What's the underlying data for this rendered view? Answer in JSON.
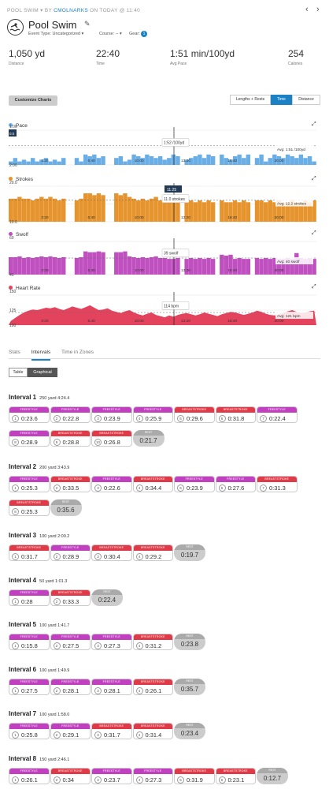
{
  "header": {
    "crumb_prefix": "POOL SWIM",
    "crumb_by": "BY",
    "crumb_user": "CMOLNARKS",
    "crumb_when": "ON TODAY @ 11:40",
    "title": "Pool Swim",
    "event_type": "Event Type: Uncategorized",
    "course": "Course: --",
    "gear": "Gear:",
    "gear_count": "1"
  },
  "stats": [
    {
      "value": "1,050 yd",
      "label": "Distance"
    },
    {
      "value": "22:40",
      "label": "Time"
    },
    {
      "value": "1:51 min/100yd",
      "label": "Avg Pace"
    },
    {
      "value": "254",
      "label": "Calories"
    }
  ],
  "toolbar": {
    "customize": "Customize Charts",
    "seg": [
      "Lengths + Rests",
      "Time",
      "Distance"
    ],
    "seg_active": 1
  },
  "colors": {
    "pace": "#6aaee6",
    "strokes": "#e6942d",
    "swolf": "#c050c0",
    "hr": "#e4435d",
    "accent": "#1a82c4",
    "freestyle": "#c040c0",
    "breaststroke": "#e03a48",
    "rest": "#bbbbbb"
  },
  "charts": [
    {
      "name": "Pace",
      "yticks": [
        "1:00",
        "2:00"
      ],
      "avg": "Avg: 1:51 /100yd",
      "tooltip": "1:52 /100yd",
      "side_badge": "0:0"
    },
    {
      "name": "Strokes",
      "yticks": [
        "20.0",
        "10.0"
      ],
      "avg": "Avg: 12.2 strokes",
      "tooltip": "11.0 strokes",
      "time_badge": "11:25"
    },
    {
      "name": "Swolf",
      "yticks": [
        "60",
        "40"
      ],
      "avg": "Avg: 40 swolf",
      "tooltip": "39 swolf"
    },
    {
      "name": "Heart Rate",
      "yticks": [
        "150",
        "125",
        "100"
      ],
      "avg": "Avg: 121 bpm",
      "tooltip": "114 bpm"
    }
  ],
  "xticks": [
    "3:20",
    "6:40",
    "10:00",
    "13:20",
    "16:40",
    "20:00"
  ],
  "chart_data": [
    {
      "type": "bar",
      "title": "Pace",
      "y": [
        1.9,
        1.8,
        1.9,
        1.85,
        1.9,
        1.8,
        1.9,
        1.85,
        1.8,
        1.9,
        1.85,
        1.9,
        1.8,
        1.9,
        1.85,
        1.8,
        1.9,
        1.7,
        1.75,
        1.7,
        1.8,
        1.75,
        1.8,
        1.7,
        1.8,
        1.75,
        1.9,
        1.85,
        1.7,
        1.75,
        1.8,
        1.7,
        1.75,
        1.8,
        1.75,
        1.85,
        1.8,
        1.7,
        1.75,
        1.8,
        1.85,
        1.8,
        1.75,
        1.7,
        1.8,
        1.7,
        1.75,
        1.8,
        1.7,
        1.8,
        1.85,
        1.75,
        1.7,
        1.8,
        1.7,
        1.75,
        1.8,
        1.7,
        1.9,
        1.8,
        1.7,
        1.75,
        1.8,
        1.7,
        1.75,
        1.8,
        1.7,
        1.8,
        1.75,
        1.9
      ]
    },
    {
      "type": "bar",
      "title": "Strokes",
      "y": [
        13,
        13,
        14,
        13,
        13,
        12,
        13,
        14,
        13,
        14,
        13,
        12,
        13,
        14,
        13,
        12,
        13,
        16,
        16,
        15,
        16,
        15,
        16,
        17,
        16,
        15,
        16,
        14,
        13,
        12,
        13,
        12,
        13,
        14,
        12,
        12,
        11,
        11,
        12,
        11,
        11,
        12,
        11,
        12,
        11,
        12,
        11,
        11,
        12,
        11,
        11,
        12,
        11,
        12,
        11,
        11,
        12,
        12,
        11,
        12,
        11,
        12,
        11,
        11,
        12,
        11,
        11,
        12,
        11,
        12
      ]
    },
    {
      "type": "bar",
      "title": "Swolf",
      "y": [
        41,
        41,
        42,
        40,
        41,
        40,
        41,
        42,
        41,
        42,
        41,
        40,
        41,
        42,
        41,
        40,
        41,
        48,
        47,
        47,
        48,
        47,
        48,
        48,
        47,
        47,
        48,
        42,
        41,
        40,
        41,
        40,
        41,
        42,
        40,
        40,
        39,
        39,
        40,
        39,
        39,
        40,
        39,
        40,
        39,
        40,
        39,
        39,
        44,
        43,
        44,
        39,
        40,
        39,
        39,
        40,
        40,
        39,
        40,
        39,
        40,
        39,
        39,
        40,
        39,
        46,
        40,
        39,
        40,
        39
      ]
    },
    {
      "type": "area",
      "title": "Heart Rate",
      "y": [
        107,
        112,
        117,
        121,
        124,
        126,
        125,
        127,
        129,
        128,
        130,
        127,
        125,
        128,
        131,
        129,
        127,
        130,
        133,
        129,
        125,
        126,
        128,
        124,
        122,
        120,
        123,
        125,
        121,
        118,
        116,
        119,
        121,
        117,
        115,
        113,
        116,
        114,
        117,
        119,
        120,
        118,
        116,
        118,
        121,
        119,
        117,
        115,
        118,
        120,
        122,
        121,
        119,
        117,
        119,
        121,
        124,
        122,
        119,
        117,
        116,
        118,
        120,
        123,
        125,
        122,
        120,
        121,
        123,
        124
      ]
    }
  ],
  "tabs": [
    "Stats",
    "Intervals",
    "Time in Zones"
  ],
  "tabs_active": 1,
  "view_toggle": [
    "Table",
    "Graphical"
  ],
  "view_active": 1,
  "intervals": [
    {
      "title": "Interval 1",
      "detail": "250 yard  4:24.4",
      "laps": [
        {
          "stroke": "FREESTYLE",
          "n": "1",
          "t": "0:23.6"
        },
        {
          "stroke": "FREESTYLE",
          "n": "2",
          "t": "0:22.8"
        },
        {
          "stroke": "FREESTYLE",
          "n": "3",
          "t": "0:23.9"
        },
        {
          "stroke": "FREESTYLE",
          "n": "4",
          "t": "0:25.9"
        },
        {
          "stroke": "BREASTSTROKE",
          "n": "5",
          "t": "0:29.6"
        },
        {
          "stroke": "BREASTSTROKE",
          "n": "6",
          "t": "0:31.8"
        },
        {
          "stroke": "FREESTYLE",
          "n": "7",
          "t": "0:22.4"
        },
        {
          "stroke": "FREESTYLE",
          "n": "8",
          "t": "0:28.9"
        },
        {
          "stroke": "BREASTSTROKE",
          "n": "9",
          "t": "0:28.8"
        },
        {
          "stroke": "BREASTSTROKE",
          "n": "10",
          "t": "0:26.8"
        },
        {
          "rest": true,
          "label": "REST",
          "t": "0:21.7"
        }
      ]
    },
    {
      "title": "Interval 2",
      "detail": "200 yard  3:43.9",
      "laps": [
        {
          "stroke": "FREESTYLE",
          "n": "1",
          "t": "0:25.3"
        },
        {
          "stroke": "BREASTSTROKE",
          "n": "2",
          "t": "0:33.5"
        },
        {
          "stroke": "FREESTYLE",
          "n": "3",
          "t": "0:22.6"
        },
        {
          "stroke": "BREASTSTROKE",
          "n": "4",
          "t": "0:34.4"
        },
        {
          "stroke": "FREESTYLE",
          "n": "5",
          "t": "0:23.9"
        },
        {
          "stroke": "FREESTYLE",
          "n": "6",
          "t": "0:27.6"
        },
        {
          "stroke": "BREASTSTROKE",
          "n": "7",
          "t": "0:31.3"
        },
        {
          "stroke": "BREASTSTROKE",
          "n": "8",
          "t": "0:25.3"
        },
        {
          "rest": true,
          "label": "REST",
          "t": "0:35.6"
        }
      ]
    },
    {
      "title": "Interval 3",
      "detail": "100 yard  2:00.2",
      "laps": [
        {
          "stroke": "BREASTSTROKE",
          "n": "1",
          "t": "0:31.7"
        },
        {
          "stroke": "FREESTYLE",
          "n": "2",
          "t": "0:28.9"
        },
        {
          "stroke": "BREASTSTROKE",
          "n": "3",
          "t": "0:30.4"
        },
        {
          "stroke": "BREASTSTROKE",
          "n": "4",
          "t": "0:29.2"
        },
        {
          "rest": true,
          "label": "REST",
          "t": "0:19.7"
        }
      ]
    },
    {
      "title": "Interval 4",
      "detail": "50 yard  1:01.3",
      "laps": [
        {
          "stroke": "FREESTYLE",
          "n": "1",
          "t": "0:28"
        },
        {
          "stroke": "BREASTSTROKE",
          "n": "2",
          "t": "0:33.3"
        },
        {
          "rest": true,
          "label": "REST",
          "t": "0:22.4"
        }
      ]
    },
    {
      "title": "Interval 5",
      "detail": "100 yard  1:41.7",
      "laps": [
        {
          "stroke": "FREESTYLE",
          "n": "1",
          "t": "0:15.8"
        },
        {
          "stroke": "FREESTYLE",
          "n": "2",
          "t": "0:27.5"
        },
        {
          "stroke": "FREESTYLE",
          "n": "3",
          "t": "0:27.3"
        },
        {
          "stroke": "BREASTSTROKE",
          "n": "4",
          "t": "0:31.2"
        },
        {
          "rest": true,
          "label": "REST",
          "t": "0:23.8"
        }
      ]
    },
    {
      "title": "Interval 6",
      "detail": "100 yard  1:49.9",
      "laps": [
        {
          "stroke": "FREESTYLE",
          "n": "1",
          "t": "0:27.5"
        },
        {
          "stroke": "FREESTYLE",
          "n": "2",
          "t": "0:28.1"
        },
        {
          "stroke": "FREESTYLE",
          "n": "3",
          "t": "0:28.1"
        },
        {
          "stroke": "BREASTSTROKE",
          "n": "4",
          "t": "0:26.1"
        },
        {
          "rest": true,
          "label": "REST",
          "t": "0:35.7"
        }
      ]
    },
    {
      "title": "Interval 7",
      "detail": "100 yard  1:58.0",
      "laps": [
        {
          "stroke": "FREESTYLE",
          "n": "1",
          "t": "0:25.8"
        },
        {
          "stroke": "FREESTYLE",
          "n": "2",
          "t": "0:29.1"
        },
        {
          "stroke": "BREASTSTROKE",
          "n": "3",
          "t": "0:31.7"
        },
        {
          "stroke": "BREASTSTROKE",
          "n": "4",
          "t": "0:31.4"
        },
        {
          "rest": true,
          "label": "REST",
          "t": "0:23.4"
        }
      ]
    },
    {
      "title": "Interval 8",
      "detail": "150 yard  2:46.1",
      "laps": [
        {
          "stroke": "FREESTYLE",
          "n": "1",
          "t": "0:26.1"
        },
        {
          "stroke": "BREASTSTROKE",
          "n": "2",
          "t": "0:34"
        },
        {
          "stroke": "FREESTYLE",
          "n": "3",
          "t": "0:23.7"
        },
        {
          "stroke": "FREESTYLE",
          "n": "4",
          "t": "0:27.3"
        },
        {
          "stroke": "BREASTSTROKE",
          "n": "5",
          "t": "0:31.9"
        },
        {
          "stroke": "BREASTSTROKE",
          "n": "6",
          "t": "0:23.1"
        },
        {
          "rest": true,
          "label": "REST",
          "t": "0:12.7"
        }
      ]
    }
  ]
}
